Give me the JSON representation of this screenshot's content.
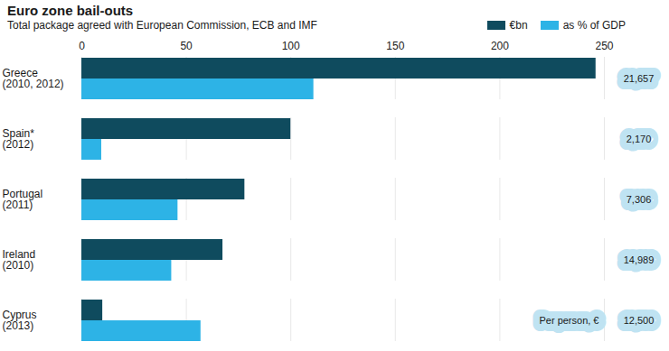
{
  "chart_data": {
    "type": "bar",
    "orientation": "horizontal",
    "title": "Euro zone bail-outs",
    "subtitle": "Total package agreed with European Commission, ECB and IMF",
    "categories": [
      "Greece\n(2010, 2012)",
      "Spain*\n(2012)",
      "Portugal\n(2011)",
      "Ireland\n(2010)",
      "Cyprus\n(2013)"
    ],
    "series": [
      {
        "name": "€bn",
        "color": "#0f4b5e",
        "values": [
          246,
          100,
          78,
          67.5,
          10
        ]
      },
      {
        "name": "as % of GDP",
        "color": "#2db3e6",
        "values": [
          111,
          9.5,
          46,
          43,
          57
        ]
      }
    ],
    "xlim": [
      0,
      250
    ],
    "xticks": [
      0,
      50,
      100,
      150,
      200,
      250
    ],
    "grid": true,
    "legend": "top-right",
    "per_person": {
      "label": "Per person, €",
      "values": [
        21657,
        2170,
        7306,
        14989,
        12500
      ],
      "value_labels": [
        "21,657",
        "2,170",
        "7,306",
        "14,989",
        "12,500"
      ]
    }
  }
}
